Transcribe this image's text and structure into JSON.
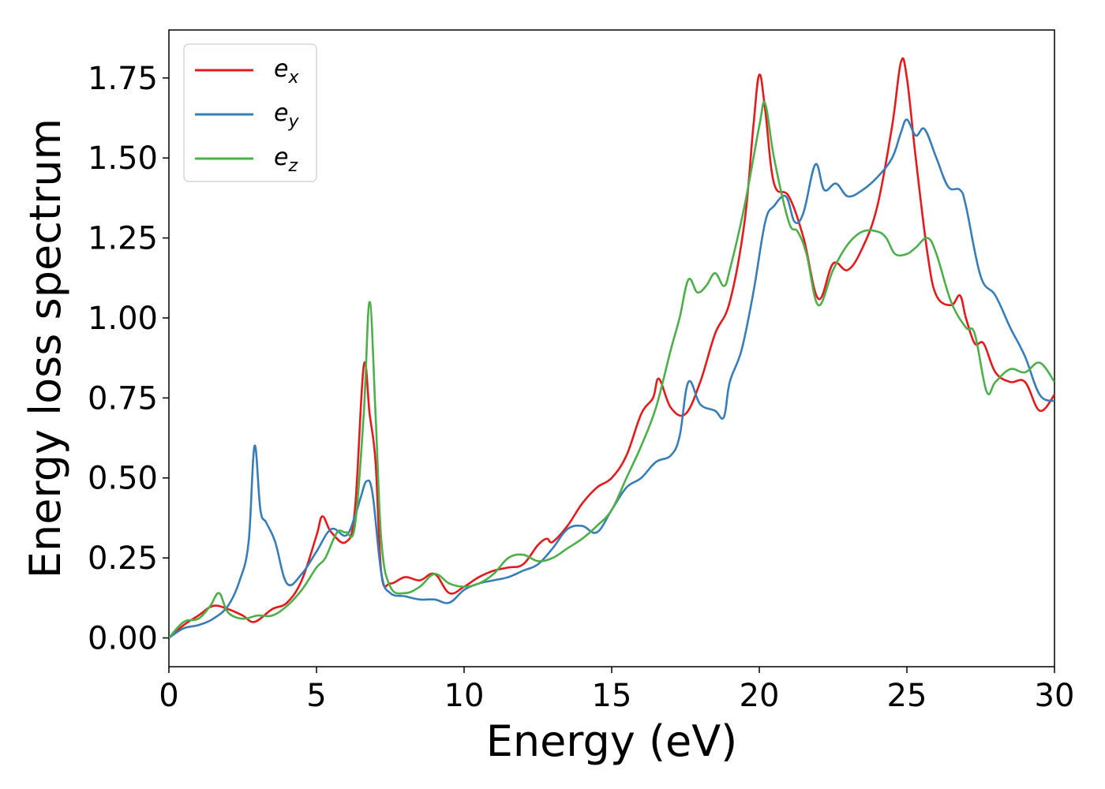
{
  "chart_data": {
    "type": "line",
    "xlabel": "Energy (eV)",
    "ylabel": "Energy loss spectrum",
    "xlim": [
      0,
      30
    ],
    "ylim": [
      -0.09,
      1.9
    ],
    "xticks": [
      0,
      5,
      10,
      15,
      20,
      25,
      30
    ],
    "xtick_labels": [
      "0",
      "5",
      "10",
      "15",
      "20",
      "25",
      "30"
    ],
    "yticks": [
      0.0,
      0.25,
      0.5,
      0.75,
      1.0,
      1.25,
      1.5,
      1.75
    ],
    "ytick_labels": [
      "0.00",
      "0.25",
      "0.50",
      "0.75",
      "1.00",
      "1.25",
      "1.50",
      "1.75"
    ],
    "grid": false,
    "legend_position": "top-left",
    "series": [
      {
        "name": "e",
        "subscript": "x",
        "color": "#e41a1c",
        "x": [
          0,
          0.5,
          1.0,
          1.5,
          2.0,
          2.5,
          2.9,
          3.5,
          4.0,
          4.5,
          5.0,
          5.2,
          5.5,
          6.0,
          6.3,
          6.6,
          6.8,
          7.0,
          7.2,
          7.5,
          8.0,
          8.5,
          9.0,
          9.5,
          10.0,
          10.5,
          11.0,
          11.5,
          12.0,
          12.5,
          12.8,
          13.0,
          13.5,
          14.0,
          14.5,
          15.0,
          15.5,
          16.0,
          16.4,
          16.6,
          17.0,
          17.5,
          18.0,
          18.5,
          19.0,
          19.5,
          19.8,
          20.0,
          20.2,
          20.5,
          21.0,
          21.5,
          22.0,
          22.5,
          23.0,
          23.5,
          24.0,
          24.5,
          24.8,
          25.0,
          25.3,
          25.7,
          26.0,
          26.5,
          26.8,
          27.0,
          27.3,
          27.6,
          28.0,
          28.5,
          29.0,
          29.5,
          30.0
        ],
        "values": [
          0.0,
          0.04,
          0.07,
          0.1,
          0.09,
          0.07,
          0.05,
          0.09,
          0.11,
          0.18,
          0.32,
          0.38,
          0.33,
          0.3,
          0.4,
          0.85,
          0.7,
          0.55,
          0.2,
          0.17,
          0.19,
          0.18,
          0.2,
          0.14,
          0.16,
          0.19,
          0.21,
          0.22,
          0.23,
          0.29,
          0.31,
          0.3,
          0.35,
          0.42,
          0.47,
          0.5,
          0.57,
          0.7,
          0.75,
          0.81,
          0.72,
          0.7,
          0.8,
          0.95,
          1.05,
          1.3,
          1.6,
          1.76,
          1.65,
          1.42,
          1.38,
          1.25,
          1.06,
          1.17,
          1.15,
          1.22,
          1.35,
          1.6,
          1.8,
          1.75,
          1.5,
          1.2,
          1.07,
          1.04,
          1.07,
          1.0,
          0.92,
          0.92,
          0.83,
          0.8,
          0.8,
          0.71,
          0.76
        ]
      },
      {
        "name": "e",
        "subscript": "y",
        "color": "#377eb8",
        "x": [
          0,
          0.5,
          1.0,
          1.5,
          2.0,
          2.4,
          2.7,
          2.9,
          3.1,
          3.3,
          3.6,
          4.0,
          4.5,
          5.0,
          5.5,
          6.0,
          6.3,
          6.5,
          6.7,
          6.9,
          7.2,
          7.5,
          8.0,
          8.5,
          9.0,
          9.5,
          10.0,
          10.5,
          11.0,
          11.5,
          12.0,
          12.5,
          13.0,
          13.5,
          14.0,
          14.5,
          15.0,
          15.5,
          16.0,
          16.5,
          17.0,
          17.3,
          17.6,
          18.0,
          18.5,
          18.8,
          19.0,
          19.4,
          19.8,
          20.2,
          20.5,
          20.9,
          21.2,
          21.5,
          21.9,
          22.2,
          22.6,
          23.0,
          23.5,
          24.0,
          24.5,
          24.8,
          25.0,
          25.3,
          25.6,
          26.0,
          26.4,
          26.8,
          27.0,
          27.5,
          28.0,
          28.5,
          29.0,
          29.5,
          30.0
        ],
        "values": [
          0.0,
          0.03,
          0.04,
          0.06,
          0.1,
          0.18,
          0.3,
          0.6,
          0.4,
          0.36,
          0.3,
          0.17,
          0.2,
          0.27,
          0.34,
          0.32,
          0.38,
          0.44,
          0.49,
          0.45,
          0.2,
          0.14,
          0.13,
          0.12,
          0.12,
          0.11,
          0.15,
          0.17,
          0.18,
          0.19,
          0.21,
          0.23,
          0.28,
          0.34,
          0.35,
          0.33,
          0.4,
          0.47,
          0.5,
          0.55,
          0.57,
          0.63,
          0.8,
          0.73,
          0.71,
          0.69,
          0.8,
          0.9,
          1.08,
          1.3,
          1.35,
          1.38,
          1.3,
          1.33,
          1.48,
          1.4,
          1.42,
          1.38,
          1.4,
          1.44,
          1.5,
          1.58,
          1.62,
          1.57,
          1.59,
          1.5,
          1.41,
          1.4,
          1.35,
          1.13,
          1.07,
          0.97,
          0.88,
          0.76,
          0.74
        ]
      },
      {
        "name": "e",
        "subscript": "z",
        "color": "#4daf4a",
        "x": [
          0,
          0.5,
          1.0,
          1.4,
          1.7,
          2.0,
          2.5,
          3.0,
          3.5,
          4.0,
          4.5,
          5.0,
          5.3,
          5.7,
          6.0,
          6.3,
          6.6,
          6.8,
          7.0,
          7.2,
          7.5,
          8.0,
          8.5,
          9.0,
          9.5,
          10.0,
          10.5,
          11.0,
          11.5,
          12.0,
          12.5,
          13.0,
          13.5,
          14.0,
          14.5,
          15.0,
          15.5,
          16.0,
          16.5,
          17.0,
          17.3,
          17.6,
          17.9,
          18.2,
          18.5,
          18.8,
          19.0,
          19.5,
          20.0,
          20.2,
          20.5,
          21.0,
          21.3,
          21.6,
          22.0,
          22.5,
          23.0,
          23.5,
          24.0,
          24.3,
          24.6,
          25.0,
          25.3,
          25.7,
          26.0,
          26.5,
          27.0,
          27.3,
          27.7,
          28.0,
          28.5,
          29.0,
          29.5,
          30.0
        ],
        "values": [
          0.0,
          0.05,
          0.06,
          0.1,
          0.14,
          0.08,
          0.06,
          0.07,
          0.07,
          0.1,
          0.15,
          0.22,
          0.25,
          0.33,
          0.33,
          0.35,
          0.7,
          1.05,
          0.7,
          0.3,
          0.16,
          0.14,
          0.16,
          0.2,
          0.17,
          0.16,
          0.17,
          0.2,
          0.25,
          0.26,
          0.24,
          0.25,
          0.28,
          0.31,
          0.35,
          0.4,
          0.5,
          0.6,
          0.72,
          0.9,
          1.0,
          1.12,
          1.08,
          1.1,
          1.14,
          1.1,
          1.15,
          1.35,
          1.6,
          1.67,
          1.5,
          1.3,
          1.27,
          1.2,
          1.04,
          1.15,
          1.23,
          1.27,
          1.27,
          1.25,
          1.2,
          1.2,
          1.22,
          1.25,
          1.2,
          1.05,
          0.97,
          0.95,
          0.77,
          0.8,
          0.84,
          0.83,
          0.86,
          0.8
        ]
      }
    ]
  }
}
